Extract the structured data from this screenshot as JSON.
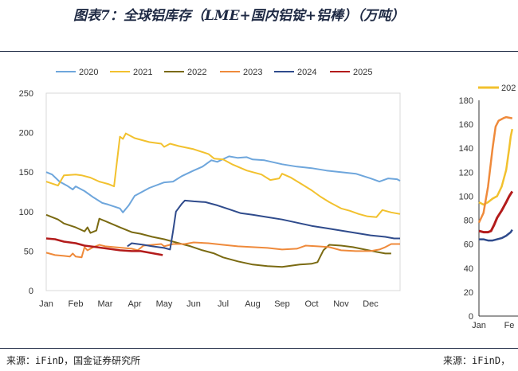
{
  "title": "图表7：全球铝库存（LME+国内铝锭+铝棒）（万吨）",
  "source_left": "来源：iFinD，国金证券研究所",
  "source_right": "来源：iFinD，",
  "chart_data": [
    {
      "type": "line",
      "legend": [
        "2020",
        "2021",
        "2022",
        "2023",
        "2024",
        "2025"
      ],
      "legend_position": "top",
      "x_ticks": [
        "Jan",
        "Feb",
        "Mar",
        "Apr",
        "May",
        "Jun",
        "Jul",
        "Aug",
        "Sep",
        "Oct",
        "Nov",
        "Dec"
      ],
      "ylim": [
        0,
        250
      ],
      "y_ticks": [
        0,
        50,
        100,
        150,
        200,
        250
      ],
      "series": [
        {
          "name": "2020",
          "color": "#6ea6dc",
          "points": [
            [
              0,
              150
            ],
            [
              0.2,
              147
            ],
            [
              0.45,
              138
            ],
            [
              0.7,
              133
            ],
            [
              0.9,
              128
            ],
            [
              1.0,
              132
            ],
            [
              1.3,
              126
            ],
            [
              1.6,
              118
            ],
            [
              1.9,
              111
            ],
            [
              2.1,
              109
            ],
            [
              2.5,
              104
            ],
            [
              2.6,
              99
            ],
            [
              2.8,
              108
            ],
            [
              3.0,
              120
            ],
            [
              3.5,
              130
            ],
            [
              4.0,
              137
            ],
            [
              4.3,
              138
            ],
            [
              4.6,
              145
            ],
            [
              5.0,
              152
            ],
            [
              5.3,
              157
            ],
            [
              5.6,
              165
            ],
            [
              5.8,
              163
            ],
            [
              6.2,
              170
            ],
            [
              6.5,
              168
            ],
            [
              6.8,
              169
            ],
            [
              7.0,
              166
            ],
            [
              7.4,
              165
            ],
            [
              8.0,
              160
            ],
            [
              8.5,
              157
            ],
            [
              9.0,
              155
            ],
            [
              9.5,
              152
            ],
            [
              10.0,
              150
            ],
            [
              10.5,
              148
            ],
            [
              11.0,
              142
            ],
            [
              11.3,
              138
            ],
            [
              11.6,
              142
            ],
            [
              11.9,
              141
            ],
            [
              12.0,
              139
            ]
          ]
        },
        {
          "name": "2021",
          "color": "#f2c12e",
          "points": [
            [
              0,
              138
            ],
            [
              0.4,
              133
            ],
            [
              0.6,
              146
            ],
            [
              1.0,
              147
            ],
            [
              1.2,
              146
            ],
            [
              1.5,
              143
            ],
            [
              1.8,
              138
            ],
            [
              2.1,
              135
            ],
            [
              2.3,
              132
            ],
            [
              2.5,
              195
            ],
            [
              2.6,
              192
            ],
            [
              2.7,
              199
            ],
            [
              3.0,
              193
            ],
            [
              3.5,
              188
            ],
            [
              3.9,
              186
            ],
            [
              4.0,
              182
            ],
            [
              4.2,
              186
            ],
            [
              4.5,
              183
            ],
            [
              5.0,
              179
            ],
            [
              5.5,
              173
            ],
            [
              5.7,
              167
            ],
            [
              6.0,
              166
            ],
            [
              6.3,
              160
            ],
            [
              6.8,
              152
            ],
            [
              7.3,
              147
            ],
            [
              7.6,
              140
            ],
            [
              7.9,
              142
            ],
            [
              8.0,
              148
            ],
            [
              8.3,
              143
            ],
            [
              8.7,
              134
            ],
            [
              9.0,
              127
            ],
            [
              9.3,
              119
            ],
            [
              9.6,
              112
            ],
            [
              10.0,
              104
            ],
            [
              10.3,
              101
            ],
            [
              10.6,
              97
            ],
            [
              10.9,
              94
            ],
            [
              11.2,
              93
            ],
            [
              11.4,
              102
            ],
            [
              11.7,
              99
            ],
            [
              12.0,
              97
            ]
          ]
        },
        {
          "name": "2022",
          "color": "#7a6a12",
          "points": [
            [
              0,
              96
            ],
            [
              0.4,
              90
            ],
            [
              0.6,
              85
            ],
            [
              1.0,
              80
            ],
            [
              1.3,
              75
            ],
            [
              1.4,
              80
            ],
            [
              1.5,
              73
            ],
            [
              1.7,
              76
            ],
            [
              1.8,
              91
            ],
            [
              2.0,
              88
            ],
            [
              2.5,
              80
            ],
            [
              2.9,
              74
            ],
            [
              3.2,
              72
            ],
            [
              3.6,
              68
            ],
            [
              4.0,
              65
            ],
            [
              4.5,
              60
            ],
            [
              4.9,
              56
            ],
            [
              5.3,
              51
            ],
            [
              5.7,
              47
            ],
            [
              6.0,
              42
            ],
            [
              6.5,
              37
            ],
            [
              7.0,
              33
            ],
            [
              7.5,
              31
            ],
            [
              8.0,
              30
            ],
            [
              8.2,
              31
            ],
            [
              8.6,
              33
            ],
            [
              9.0,
              34
            ],
            [
              9.2,
              36
            ],
            [
              9.4,
              51
            ],
            [
              9.6,
              58
            ],
            [
              10.0,
              57
            ],
            [
              10.4,
              55
            ],
            [
              10.8,
              52
            ],
            [
              11.2,
              49
            ],
            [
              11.5,
              47
            ],
            [
              11.7,
              47
            ]
          ]
        },
        {
          "name": "2023",
          "color": "#ef8a3b",
          "points": [
            [
              0,
              48
            ],
            [
              0.3,
              45
            ],
            [
              0.6,
              44
            ],
            [
              0.8,
              43
            ],
            [
              0.9,
              47
            ],
            [
              1.0,
              43
            ],
            [
              1.2,
              42
            ],
            [
              1.3,
              55
            ],
            [
              1.4,
              51
            ],
            [
              1.6,
              55
            ],
            [
              1.8,
              58
            ],
            [
              2.0,
              56
            ],
            [
              2.3,
              55
            ],
            [
              2.6,
              54
            ],
            [
              2.9,
              53
            ],
            [
              3.1,
              51
            ],
            [
              3.3,
              57
            ],
            [
              3.6,
              58
            ],
            [
              3.9,
              59
            ],
            [
              4.0,
              56
            ],
            [
              4.3,
              59
            ],
            [
              4.7,
              59
            ],
            [
              5.0,
              61
            ],
            [
              5.5,
              60
            ],
            [
              6.0,
              58
            ],
            [
              6.5,
              56
            ],
            [
              7.0,
              55
            ],
            [
              7.5,
              54
            ],
            [
              8.0,
              52
            ],
            [
              8.5,
              53
            ],
            [
              8.8,
              57
            ],
            [
              9.2,
              56
            ],
            [
              9.6,
              55
            ],
            [
              10.0,
              51
            ],
            [
              10.5,
              50
            ],
            [
              11.0,
              50
            ],
            [
              11.3,
              52
            ],
            [
              11.5,
              55
            ],
            [
              11.7,
              59
            ],
            [
              12.0,
              59
            ]
          ]
        },
        {
          "name": "2024",
          "color": "#2f4b8c",
          "points": [
            [
              2.75,
              56
            ],
            [
              2.9,
              60
            ],
            [
              3.3,
              58
            ],
            [
              3.6,
              56
            ],
            [
              4.0,
              54
            ],
            [
              4.2,
              52
            ],
            [
              4.3,
              75
            ],
            [
              4.4,
              100
            ],
            [
              4.6,
              110
            ],
            [
              4.7,
              114
            ],
            [
              5.0,
              113
            ],
            [
              5.4,
              112
            ],
            [
              5.8,
              108
            ],
            [
              6.2,
              103
            ],
            [
              6.6,
              98
            ],
            [
              7.0,
              96
            ],
            [
              7.5,
              93
            ],
            [
              8.0,
              90
            ],
            [
              8.5,
              86
            ],
            [
              9.0,
              82
            ],
            [
              9.5,
              79
            ],
            [
              10.0,
              76
            ],
            [
              10.5,
              73
            ],
            [
              11.0,
              70
            ],
            [
              11.5,
              68
            ],
            [
              11.8,
              66
            ],
            [
              12.0,
              66
            ]
          ]
        },
        {
          "name": "2025",
          "color": "#b31b1b",
          "points": [
            [
              0,
              66
            ],
            [
              0.3,
              65
            ],
            [
              0.6,
              62
            ],
            [
              1.0,
              60
            ],
            [
              1.3,
              57
            ],
            [
              1.7,
              55
            ],
            [
              2.1,
              53
            ],
            [
              2.5,
              51
            ],
            [
              2.9,
              50
            ],
            [
              3.2,
              50
            ],
            [
              3.5,
              48
            ],
            [
              3.8,
              46
            ],
            [
              3.95,
              45
            ]
          ]
        }
      ]
    },
    {
      "type": "line",
      "legend": [
        "202"
      ],
      "x_ticks": [
        "Jan",
        "Fe"
      ],
      "ylim": [
        0,
        180
      ],
      "y_ticks": [
        0,
        20,
        40,
        60,
        80,
        100,
        120,
        140,
        160,
        180
      ],
      "series": [
        {
          "name": "202",
          "color": "#f2c12e",
          "points": [
            [
              0,
              95
            ],
            [
              0.15,
              93
            ],
            [
              0.3,
              95
            ],
            [
              0.45,
              98
            ],
            [
              0.6,
              100
            ],
            [
              0.75,
              108
            ],
            [
              0.9,
              122
            ],
            [
              1.0,
              140
            ],
            [
              1.05,
              150
            ],
            [
              1.1,
              156
            ]
          ]
        },
        {
          "color": "#ef8a3b",
          "points": [
            [
              0,
              78
            ],
            [
              0.15,
              86
            ],
            [
              0.3,
              108
            ],
            [
              0.45,
              140
            ],
            [
              0.55,
              158
            ],
            [
              0.65,
              163
            ],
            [
              0.8,
              165
            ],
            [
              0.9,
              166
            ],
            [
              1.1,
              165
            ]
          ]
        },
        {
          "color": "#b31b1b",
          "points": [
            [
              0,
              71
            ],
            [
              0.15,
              70
            ],
            [
              0.3,
              70
            ],
            [
              0.4,
              71
            ],
            [
              0.5,
              76
            ],
            [
              0.6,
              82
            ],
            [
              0.75,
              88
            ],
            [
              0.9,
              95
            ],
            [
              1.0,
              100
            ],
            [
              1.1,
              104
            ]
          ]
        },
        {
          "color": "#2f4b8c",
          "points": [
            [
              0,
              64
            ],
            [
              0.15,
              64
            ],
            [
              0.3,
              63
            ],
            [
              0.45,
              63
            ],
            [
              0.6,
              64
            ],
            [
              0.75,
              65
            ],
            [
              0.9,
              67
            ],
            [
              1.05,
              70
            ],
            [
              1.1,
              72
            ]
          ]
        }
      ]
    }
  ]
}
